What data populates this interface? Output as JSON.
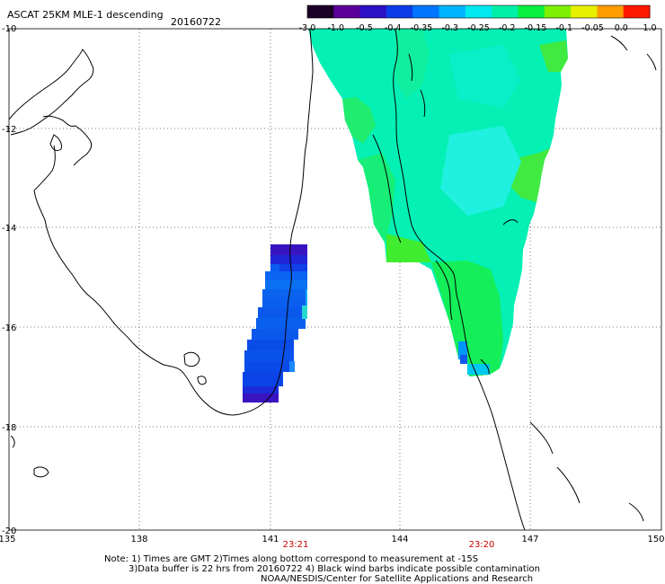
{
  "header": {
    "title": "ASCAT 25KM MLE-1 descending",
    "date": "20160722"
  },
  "colorbar": {
    "labels": [
      "-3.0",
      "-1.0",
      "-0.5",
      "-0.4",
      "-0.35",
      "-0.3",
      "-0.25",
      "-0.2",
      "-0.15",
      "-0.1",
      "-0.05",
      "0.0",
      "1.0"
    ],
    "colors": [
      "#1a0026",
      "#5a0098",
      "#2c10c6",
      "#0b3ce8",
      "#0076ff",
      "#00b4ff",
      "#00e8f0",
      "#00f0a8",
      "#08f040",
      "#7cf000",
      "#e6f000",
      "#ff9c00",
      "#ff1800"
    ]
  },
  "axes": {
    "x_ticks": [
      "135",
      "138",
      "141",
      "144",
      "147",
      "150"
    ],
    "y_ticks": [
      "-10",
      "-12",
      "-14",
      "-16",
      "-18",
      "-20"
    ]
  },
  "swath_times": [
    "23:21",
    "23:20"
  ],
  "colors": {
    "time_label": "#cc0000",
    "grid": "#555555"
  },
  "footer": {
    "line1": "Note: 1) Times are GMT 2)Times along bottom correspond to measurement at -15S",
    "line2": "3)Data buffer is 22 hrs from 20160722 4) Black wind barbs indicate possible contamination",
    "line3": "NOAA/NESDIS/Center for Satellite Applications and Research"
  }
}
